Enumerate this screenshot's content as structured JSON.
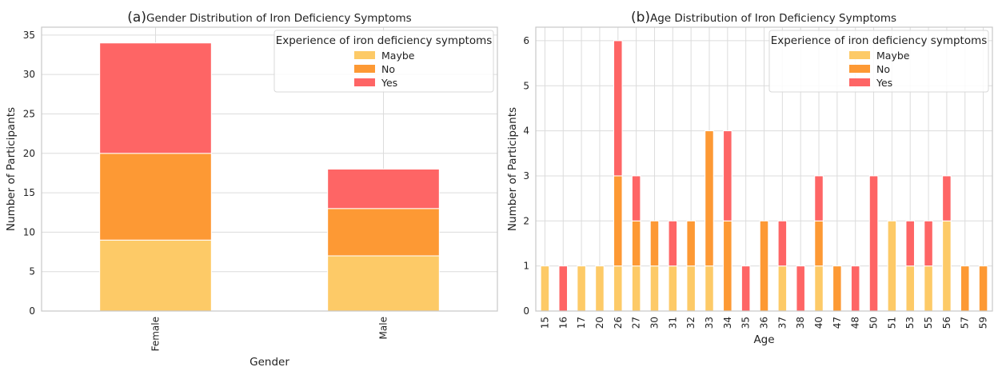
{
  "chart_data": [
    {
      "type": "bar",
      "stacked": true,
      "panel": "(a)",
      "title": "Gender Distribution of Iron Deficiency Symptoms",
      "xlabel": "Gender",
      "ylabel": "Number of Participants",
      "categories": [
        "Female",
        "Male"
      ],
      "series": [
        {
          "name": "Maybe",
          "values": [
            9,
            7
          ]
        },
        {
          "name": "No",
          "values": [
            11,
            6
          ]
        },
        {
          "name": "Yes",
          "values": [
            14,
            5
          ]
        }
      ],
      "ylim": [
        0,
        36
      ],
      "yticks": [
        0,
        5,
        10,
        15,
        20,
        25,
        30,
        35
      ],
      "grid": true,
      "legend_title": "Experience of iron deficiency symptoms",
      "legend_position": "top-right"
    },
    {
      "type": "bar",
      "stacked": true,
      "panel": "(b)",
      "title": "Age Distribution of Iron Deficiency Symptoms",
      "xlabel": "Age",
      "ylabel": "Number of Participants",
      "categories": [
        "15",
        "16",
        "17",
        "20",
        "26",
        "27",
        "30",
        "31",
        "32",
        "33",
        "34",
        "35",
        "36",
        "37",
        "38",
        "40",
        "47",
        "48",
        "50",
        "51",
        "53",
        "55",
        "56",
        "57",
        "59"
      ],
      "series": [
        {
          "name": "Maybe",
          "values": [
            1,
            0,
            1,
            1,
            1,
            1,
            1,
            1,
            1,
            1,
            0,
            0,
            0,
            1,
            0,
            1,
            0,
            0,
            0,
            2,
            1,
            1,
            2,
            0,
            0
          ]
        },
        {
          "name": "No",
          "values": [
            0,
            0,
            0,
            0,
            2,
            1,
            1,
            0,
            1,
            3,
            2,
            0,
            2,
            0,
            0,
            1,
            1,
            0,
            0,
            0,
            0,
            0,
            0,
            1,
            1
          ]
        },
        {
          "name": "Yes",
          "values": [
            0,
            1,
            0,
            0,
            3,
            1,
            0,
            1,
            0,
            0,
            2,
            1,
            0,
            1,
            1,
            1,
            0,
            1,
            3,
            0,
            1,
            1,
            1,
            0,
            0
          ]
        }
      ],
      "ylim": [
        0,
        6.3
      ],
      "yticks": [
        0,
        1,
        2,
        3,
        4,
        5,
        6
      ],
      "grid": true,
      "legend_title": "Experience of iron deficiency symptoms",
      "legend_position": "top-right"
    }
  ],
  "colors": {
    "Maybe": "#fdca67",
    "No": "#fd9934",
    "Yes": "#fe6565",
    "grid": "#dcdcdc",
    "spine": "#c8c8c8"
  }
}
